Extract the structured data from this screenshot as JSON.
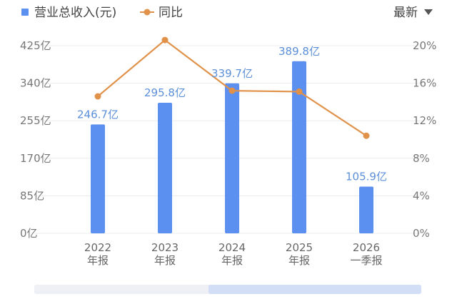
{
  "chart_data": {
    "type": "bar",
    "categories": [
      {
        "year": "2022",
        "period": "年报"
      },
      {
        "year": "2023",
        "period": "年报"
      },
      {
        "year": "2024",
        "period": "年报"
      },
      {
        "year": "2025",
        "period": "年报"
      },
      {
        "year": "2026",
        "period": "一季报"
      }
    ],
    "series": [
      {
        "name": "营业总收入(元)",
        "kind": "bar",
        "axis": "left",
        "color": "#5B8FF0",
        "values": [
          246.7,
          295.8,
          339.7,
          389.8,
          105.9
        ],
        "labels": [
          "246.7亿",
          "295.8亿",
          "339.7亿",
          "389.8亿",
          "105.9亿"
        ]
      },
      {
        "name": "同比",
        "kind": "line",
        "axis": "right",
        "color": "#E0924A",
        "values": [
          14.6,
          20.6,
          15.2,
          15.1,
          10.4
        ]
      }
    ],
    "left_axis": {
      "range": [
        0,
        425
      ],
      "ticks": [
        0,
        85,
        170,
        255,
        340,
        425
      ],
      "tick_labels": [
        "0亿",
        "85亿",
        "170亿",
        "255亿",
        "340亿",
        "425亿"
      ]
    },
    "right_axis": {
      "range": [
        0,
        20
      ],
      "ticks": [
        0,
        4,
        8,
        12,
        16,
        20
      ],
      "tick_labels": [
        "0%",
        "4%",
        "8%",
        "12%",
        "16%",
        "20%"
      ]
    },
    "grid": true,
    "legend": "top-left"
  },
  "menu": {
    "label": "最新",
    "icon": "caret-down-icon"
  },
  "scrollbar": {
    "visible_fraction": 0.55,
    "offset_fraction": 0.45
  }
}
